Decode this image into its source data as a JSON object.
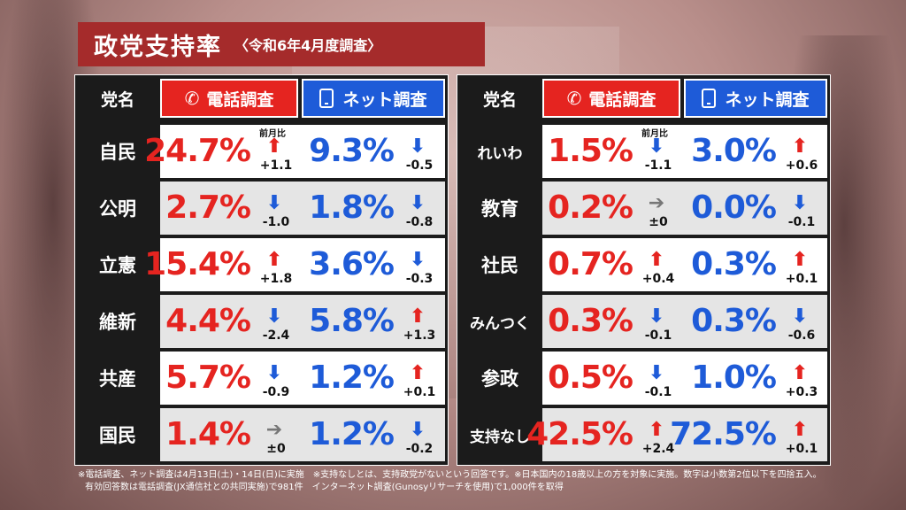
{
  "title": {
    "main": "政党支持率",
    "sub": "〈令和6年4月度調査〉"
  },
  "headers": {
    "party": "党名",
    "phone": "電話調査",
    "net": "ネット調査",
    "phone_icon": "phone-icon",
    "net_icon": "smartphone-icon"
  },
  "prev_month_label": "前月比",
  "colors": {
    "phone": "#e52420",
    "net": "#1e5bd8",
    "title_bg": "#a52b2b"
  },
  "left_rows": [
    {
      "party": "自民",
      "phone": {
        "value": "24.7%",
        "dir": "up",
        "change": "+1.1"
      },
      "net": {
        "value": "9.3%",
        "dir": "down",
        "change": "-0.5"
      }
    },
    {
      "party": "公明",
      "phone": {
        "value": "2.7%",
        "dir": "down",
        "change": "-1.0"
      },
      "net": {
        "value": "1.8%",
        "dir": "down",
        "change": "-0.8"
      }
    },
    {
      "party": "立憲",
      "phone": {
        "value": "15.4%",
        "dir": "up",
        "change": "+1.8"
      },
      "net": {
        "value": "3.6%",
        "dir": "down",
        "change": "-0.3"
      }
    },
    {
      "party": "維新",
      "phone": {
        "value": "4.4%",
        "dir": "down",
        "change": "-2.4"
      },
      "net": {
        "value": "5.8%",
        "dir": "up",
        "change": "+1.3"
      }
    },
    {
      "party": "共産",
      "phone": {
        "value": "5.7%",
        "dir": "down",
        "change": "-0.9"
      },
      "net": {
        "value": "1.2%",
        "dir": "up",
        "change": "+0.1"
      }
    },
    {
      "party": "国民",
      "phone": {
        "value": "1.4%",
        "dir": "flat",
        "change": "±0"
      },
      "net": {
        "value": "1.2%",
        "dir": "down",
        "change": "-0.2"
      }
    }
  ],
  "right_rows": [
    {
      "party": "れいわ",
      "phone": {
        "value": "1.5%",
        "dir": "down",
        "change": "-1.1"
      },
      "net": {
        "value": "3.0%",
        "dir": "up",
        "change": "+0.6"
      }
    },
    {
      "party": "教育",
      "phone": {
        "value": "0.2%",
        "dir": "flat",
        "change": "±0"
      },
      "net": {
        "value": "0.0%",
        "dir": "down",
        "change": "-0.1"
      }
    },
    {
      "party": "社民",
      "phone": {
        "value": "0.7%",
        "dir": "up",
        "change": "+0.4"
      },
      "net": {
        "value": "0.3%",
        "dir": "up",
        "change": "+0.1"
      }
    },
    {
      "party": "みんつく",
      "phone": {
        "value": "0.3%",
        "dir": "down",
        "change": "-0.1"
      },
      "net": {
        "value": "0.3%",
        "dir": "down",
        "change": "-0.6"
      }
    },
    {
      "party": "参政",
      "phone": {
        "value": "0.5%",
        "dir": "down",
        "change": "-0.1"
      },
      "net": {
        "value": "1.0%",
        "dir": "up",
        "change": "+0.3"
      }
    },
    {
      "party": "支持なし",
      "phone": {
        "value": "42.5%",
        "dir": "up",
        "change": "+2.4"
      },
      "net": {
        "value": "72.5%",
        "dir": "up",
        "change": "+0.1"
      }
    }
  ],
  "footnotes": [
    "※電話調査、ネット調査は4月13日(土)・14日(日)に実施　※支持なしとは、支持政党がないという回答です。※日本国内の18歳以上の方を対象に実施。数字は小数第2位以下を四捨五入。",
    "有効回答数は電話調査(JX通信社との共同実施)で981件　インターネット調査(Gunosyリサーチを使用)で1,000件を取得"
  ]
}
